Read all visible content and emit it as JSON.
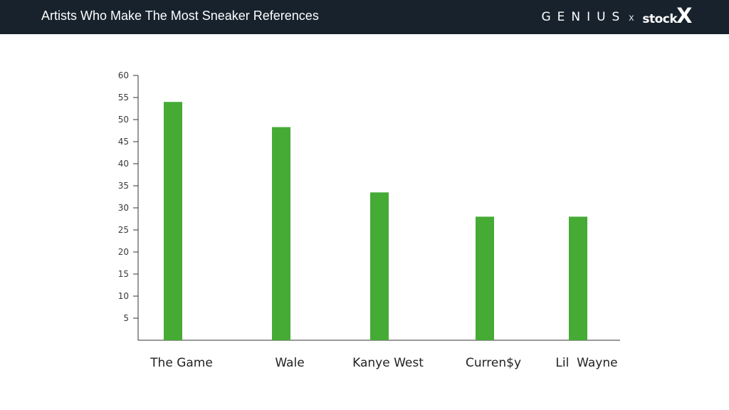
{
  "header": {
    "title": "Artists Who Make The Most Sneaker References",
    "brand_genius": "GENIUS",
    "brand_separator": "x",
    "brand_stockx": "stock",
    "brand_stockx_mark": "X",
    "background": "#17222d"
  },
  "chart_data": {
    "type": "bar",
    "title": "Artists Who Make The Most Sneaker References",
    "categories": [
      "The Game",
      "Wale",
      "Kanye West",
      "Curren$y",
      "Lil  Wayne"
    ],
    "values": [
      54,
      48.3,
      33.5,
      28,
      28
    ],
    "yticks": [
      5,
      10,
      15,
      20,
      25,
      30,
      35,
      40,
      45,
      50,
      55,
      60
    ],
    "ylim": [
      0,
      60
    ],
    "xlabel": "",
    "ylabel": "",
    "grid": false,
    "legend": "none",
    "bar_color": "#45ab35"
  }
}
